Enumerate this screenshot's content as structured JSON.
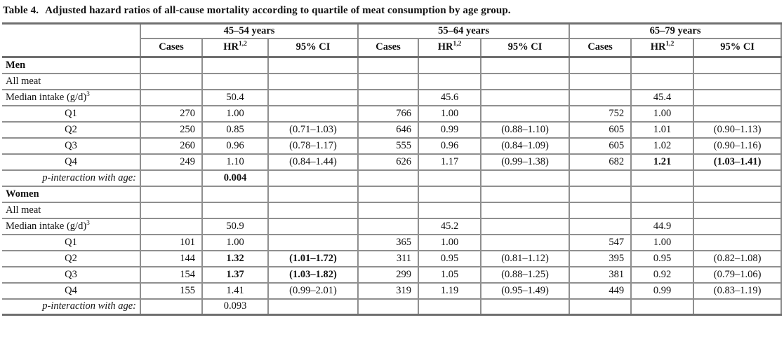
{
  "title": {
    "label": "Table 4.",
    "text": "Adjusted hazard ratios of all-cause mortality according to quartile of meat consumption by age group."
  },
  "chart_data": {
    "type": "table",
    "column_groups": [
      "45–54 years",
      "55–64 years",
      "65–79 years"
    ],
    "sub_header": {
      "cases": "Cases",
      "hr": "HR",
      "hr_sup": "1,2",
      "ci": "95% CI"
    },
    "rows": [
      {
        "label": "Men",
        "label_style": "section",
        "cells": [
          "",
          "",
          "",
          "",
          "",
          "",
          "",
          "",
          ""
        ]
      },
      {
        "label": "All meat",
        "label_style": "left",
        "cells": [
          "",
          "",
          "",
          "",
          "",
          "",
          "",
          "",
          ""
        ]
      },
      {
        "label": "Median intake (g/d)",
        "label_sup": "3",
        "label_style": "left",
        "cells": [
          "",
          "50.4",
          "",
          "",
          "45.6",
          "",
          "",
          "45.4",
          ""
        ]
      },
      {
        "label": "Q1",
        "label_style": "center",
        "cells": [
          "270",
          "1.00",
          "",
          "766",
          "1.00",
          "",
          "752",
          "1.00",
          ""
        ]
      },
      {
        "label": "Q2",
        "label_style": "center",
        "cells": [
          "250",
          "0.85",
          "(0.71–1.03)",
          "646",
          "0.99",
          "(0.88–1.10)",
          "605",
          "1.01",
          "(0.90–1.13)"
        ]
      },
      {
        "label": "Q3",
        "label_style": "center",
        "cells": [
          "260",
          "0.96",
          "(0.78–1.17)",
          "555",
          "0.96",
          "(0.84–1.09)",
          "605",
          "1.02",
          "(0.90–1.16)"
        ]
      },
      {
        "label": "Q4",
        "label_style": "center",
        "cells": [
          "249",
          "1.10",
          "(0.84–1.44)",
          "626",
          "1.17",
          "(0.99–1.38)",
          "682",
          "1.21",
          "(1.03–1.41)"
        ],
        "bold_cells": [
          7,
          8
        ]
      },
      {
        "label": "p-interaction with age:",
        "label_style": "pint",
        "cells": [
          "",
          "0.004",
          "",
          "",
          "",
          "",
          "",
          "",
          ""
        ],
        "bold_cells": [
          1
        ]
      },
      {
        "label": "Women",
        "label_style": "section",
        "cells": [
          "",
          "",
          "",
          "",
          "",
          "",
          "",
          "",
          ""
        ]
      },
      {
        "label": "All meat",
        "label_style": "left",
        "cells": [
          "",
          "",
          "",
          "",
          "",
          "",
          "",
          "",
          ""
        ]
      },
      {
        "label": "Median intake (g/d)",
        "label_sup": "3",
        "label_style": "left",
        "cells": [
          "",
          "50.9",
          "",
          "",
          "45.2",
          "",
          "",
          "44.9",
          ""
        ]
      },
      {
        "label": "Q1",
        "label_style": "center",
        "cells": [
          "101",
          "1.00",
          "",
          "365",
          "1.00",
          "",
          "547",
          "1.00",
          ""
        ]
      },
      {
        "label": "Q2",
        "label_style": "center",
        "cells": [
          "144",
          "1.32",
          "(1.01–1.72)",
          "311",
          "0.95",
          "(0.81–1.12)",
          "395",
          "0.95",
          "(0.82–1.08)"
        ],
        "bold_cells": [
          1,
          2
        ]
      },
      {
        "label": "Q3",
        "label_style": "center",
        "cells": [
          "154",
          "1.37",
          "(1.03–1.82)",
          "299",
          "1.05",
          "(0.88–1.25)",
          "381",
          "0.92",
          "(0.79–1.06)"
        ],
        "bold_cells": [
          1,
          2
        ]
      },
      {
        "label": "Q4",
        "label_style": "center",
        "cells": [
          "155",
          "1.41",
          "(0.99–2.01)",
          "319",
          "1.19",
          "(0.95–1.49)",
          "449",
          "0.99",
          "(0.83–1.19)"
        ]
      },
      {
        "label": "p-interaction with age:",
        "label_style": "pint",
        "cells": [
          "",
          "0.093",
          "",
          "",
          "",
          "",
          "",
          "",
          ""
        ]
      }
    ]
  }
}
